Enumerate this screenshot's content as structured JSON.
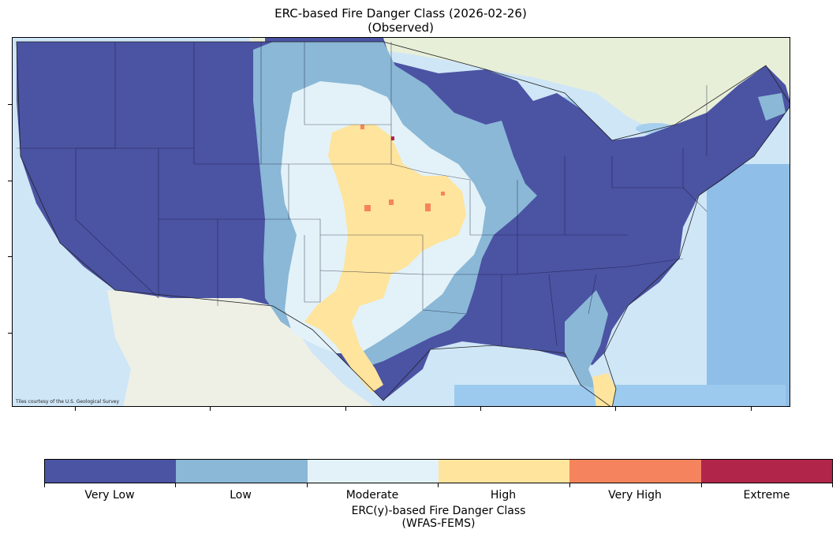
{
  "title": {
    "line1": "ERC-based Fire Danger Class (2026-02-26)",
    "line2": "(Observed)"
  },
  "attribution": "Tiles courtesy of the U.S. Geological Survey",
  "colors": {
    "very_low": "#4b53a3",
    "low": "#8ab8d6",
    "moderate": "#e3f2f8",
    "high": "#fee49c",
    "very_high": "#f5845e",
    "extreme": "#b2254a",
    "ocean": "#cfe6f7",
    "land_base": "#eef0e6"
  },
  "colorbar": {
    "classes": [
      "Very Low",
      "Low",
      "Moderate",
      "High",
      "Very High",
      "Extreme"
    ],
    "title_line1": "ERC(y)-based Fire Danger Class",
    "title_line2": "(WFAS-FEMS)"
  }
}
